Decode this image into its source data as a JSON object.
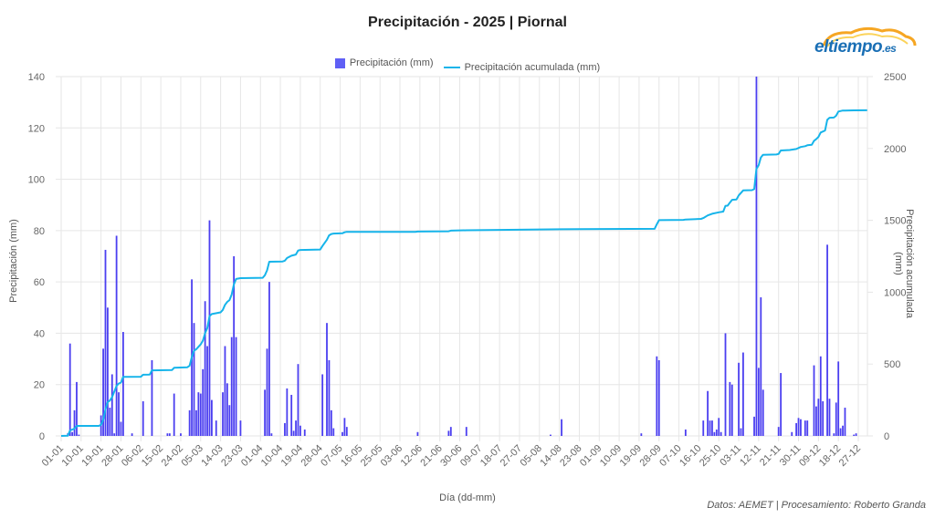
{
  "header": {
    "title": "Precipitación - 2025 | Piornal",
    "logo_text": "eltiempo",
    "logo_suffix": ".es"
  },
  "legend": {
    "bar_label": "Precipitación (mm)",
    "line_label": "Precipitación acumulada (mm)"
  },
  "footer": {
    "xlabel": "Día (dd-mm)",
    "credit": "Datos: AEMET | Procesamiento: Roberto Granda"
  },
  "colors": {
    "bar": "#4b3ff0",
    "line": "#16b4ea",
    "grid": "#e6e6e6"
  },
  "chart_data": {
    "type": "bar+line",
    "title": "Precipitación - 2025 | Piornal",
    "xlabel": "Día (dd-mm)",
    "ylabel": "Precipitación (mm)",
    "y2label": "Precipitación acumulada (mm)",
    "ylim": [
      0,
      140
    ],
    "y2lim": [
      0,
      2500
    ],
    "yticks": [
      0,
      20,
      40,
      60,
      80,
      100,
      120,
      140
    ],
    "y2ticks": [
      0,
      500,
      1000,
      1500,
      2000,
      2500
    ],
    "grid": true,
    "legend_position": "top",
    "x_tick_labels": [
      "01-01",
      "10-01",
      "19-01",
      "28-01",
      "06-02",
      "15-02",
      "24-02",
      "05-03",
      "14-03",
      "23-03",
      "01-04",
      "10-04",
      "19-04",
      "28-04",
      "07-05",
      "16-05",
      "25-05",
      "03-06",
      "12-06",
      "21-06",
      "30-06",
      "09-07",
      "18-07",
      "27-07",
      "05-08",
      "14-08",
      "23-08",
      "01-09",
      "10-09",
      "19-09",
      "28-09",
      "07-10",
      "16-10",
      "25-10",
      "03-11",
      "12-11",
      "21-11",
      "30-11",
      "09-12",
      "18-12",
      "27-12"
    ],
    "series": [
      {
        "name": "Precipitación (mm)",
        "type": "bar",
        "axis": "left",
        "points": [
          [
            3,
            1
          ],
          [
            4,
            36
          ],
          [
            5,
            1.5
          ],
          [
            6,
            10
          ],
          [
            7,
            21
          ],
          [
            8,
            0.5
          ],
          [
            18,
            8
          ],
          [
            19,
            34
          ],
          [
            20,
            72.5
          ],
          [
            21,
            50
          ],
          [
            22,
            11
          ],
          [
            23,
            24
          ],
          [
            24,
            1
          ],
          [
            25,
            78
          ],
          [
            26,
            17
          ],
          [
            27,
            5.5
          ],
          [
            28,
            40.5
          ],
          [
            32,
            1
          ],
          [
            37,
            13.5
          ],
          [
            41,
            29.5
          ],
          [
            48,
            1
          ],
          [
            49,
            1
          ],
          [
            51,
            16.5
          ],
          [
            54,
            1
          ],
          [
            58,
            10
          ],
          [
            59,
            61
          ],
          [
            60,
            44
          ],
          [
            61,
            10
          ],
          [
            62,
            17
          ],
          [
            63,
            16.5
          ],
          [
            64,
            26
          ],
          [
            65,
            52.5
          ],
          [
            66,
            35
          ],
          [
            67,
            84
          ],
          [
            68,
            14
          ],
          [
            70,
            6
          ],
          [
            73,
            17
          ],
          [
            74,
            35
          ],
          [
            75,
            20.5
          ],
          [
            76,
            12
          ],
          [
            77,
            38.5
          ],
          [
            78,
            70
          ],
          [
            79,
            38.5
          ],
          [
            81,
            6
          ],
          [
            92,
            18
          ],
          [
            93,
            34
          ],
          [
            94,
            60
          ],
          [
            95,
            1
          ],
          [
            101,
            5
          ],
          [
            102,
            18.5
          ],
          [
            104,
            16
          ],
          [
            105,
            2
          ],
          [
            106,
            6
          ],
          [
            107,
            28
          ],
          [
            108,
            4
          ],
          [
            110,
            2.5
          ],
          [
            118,
            24
          ],
          [
            120,
            44
          ],
          [
            121,
            29.5
          ],
          [
            122,
            10
          ],
          [
            123,
            3
          ],
          [
            127,
            1.5
          ],
          [
            128,
            7
          ],
          [
            129,
            3.5
          ],
          [
            161,
            1.5
          ],
          [
            175,
            2
          ],
          [
            176,
            3.5
          ],
          [
            183,
            3.5
          ],
          [
            221,
            0.5
          ],
          [
            226,
            6.5
          ],
          [
            262,
            1
          ],
          [
            269,
            31
          ],
          [
            270,
            29.5
          ],
          [
            282,
            2.5
          ],
          [
            290,
            6
          ],
          [
            292,
            17.5
          ],
          [
            293,
            6
          ],
          [
            294,
            6
          ],
          [
            295,
            1.5
          ],
          [
            296,
            2.5
          ],
          [
            297,
            7
          ],
          [
            298,
            1.5
          ],
          [
            300,
            40
          ],
          [
            302,
            21
          ],
          [
            303,
            20
          ],
          [
            306,
            28.5
          ],
          [
            307,
            3
          ],
          [
            308,
            32.5
          ],
          [
            313,
            7.5
          ],
          [
            314,
            140
          ],
          [
            315,
            26.5
          ],
          [
            316,
            54
          ],
          [
            317,
            18
          ],
          [
            324,
            3.5
          ],
          [
            325,
            24.5
          ],
          [
            330,
            1.5
          ],
          [
            332,
            5
          ],
          [
            333,
            7
          ],
          [
            334,
            6.5
          ],
          [
            336,
            6
          ],
          [
            337,
            6
          ],
          [
            340,
            27.5
          ],
          [
            341,
            11.5
          ],
          [
            342,
            14.5
          ],
          [
            343,
            31
          ],
          [
            344,
            13.5
          ],
          [
            346,
            74.5
          ],
          [
            347,
            14.5
          ],
          [
            349,
            1
          ],
          [
            350,
            13
          ],
          [
            351,
            29
          ],
          [
            352,
            3
          ],
          [
            353,
            4
          ],
          [
            354,
            11
          ],
          [
            358,
            0.5
          ],
          [
            359,
            1
          ]
        ]
      },
      {
        "name": "Precipitación acumulada (mm)",
        "type": "line",
        "axis": "right",
        "points": [
          [
            0,
            0
          ],
          [
            3,
            2
          ],
          [
            4,
            38
          ],
          [
            6,
            50
          ],
          [
            7,
            70
          ],
          [
            17,
            70
          ],
          [
            18,
            78
          ],
          [
            19,
            112
          ],
          [
            20,
            185
          ],
          [
            21,
            235
          ],
          [
            22,
            246
          ],
          [
            23,
            270
          ],
          [
            25,
            348
          ],
          [
            26,
            365
          ],
          [
            27,
            371
          ],
          [
            28,
            411
          ],
          [
            36,
            412
          ],
          [
            37,
            426
          ],
          [
            40,
            427
          ],
          [
            41,
            456
          ],
          [
            50,
            458
          ],
          [
            51,
            474
          ],
          [
            57,
            478
          ],
          [
            58,
            488
          ],
          [
            59,
            549
          ],
          [
            60,
            593
          ],
          [
            61,
            603
          ],
          [
            62,
            620
          ],
          [
            63,
            637
          ],
          [
            64,
            663
          ],
          [
            65,
            715
          ],
          [
            66,
            750
          ],
          [
            67,
            834
          ],
          [
            68,
            848
          ],
          [
            72,
            860
          ],
          [
            73,
            877
          ],
          [
            74,
            912
          ],
          [
            75,
            933
          ],
          [
            76,
            945
          ],
          [
            77,
            983
          ],
          [
            78,
            1053
          ],
          [
            79,
            1092
          ],
          [
            81,
            1098
          ],
          [
            91,
            1100
          ],
          [
            92,
            1118
          ],
          [
            93,
            1152
          ],
          [
            94,
            1212
          ],
          [
            100,
            1214
          ],
          [
            101,
            1219
          ],
          [
            102,
            1238
          ],
          [
            104,
            1254
          ],
          [
            106,
            1262
          ],
          [
            107,
            1290
          ],
          [
            108,
            1294
          ],
          [
            117,
            1297
          ],
          [
            118,
            1321
          ],
          [
            120,
            1365
          ],
          [
            121,
            1395
          ],
          [
            122,
            1405
          ],
          [
            123,
            1408
          ],
          [
            127,
            1410
          ],
          [
            128,
            1417
          ],
          [
            129,
            1420
          ],
          [
            160,
            1420
          ],
          [
            161,
            1422
          ],
          [
            175,
            1424
          ],
          [
            176,
            1428
          ],
          [
            183,
            1431
          ],
          [
            226,
            1438
          ],
          [
            268,
            1441
          ],
          [
            269,
            1472
          ],
          [
            270,
            1501
          ],
          [
            281,
            1503
          ],
          [
            282,
            1506
          ],
          [
            289,
            1510
          ],
          [
            290,
            1516
          ],
          [
            292,
            1534
          ],
          [
            294,
            1546
          ],
          [
            297,
            1556
          ],
          [
            299,
            1561
          ],
          [
            300,
            1601
          ],
          [
            301,
            1602
          ],
          [
            302,
            1623
          ],
          [
            303,
            1643
          ],
          [
            305,
            1645
          ],
          [
            306,
            1673
          ],
          [
            308,
            1708
          ],
          [
            312,
            1710
          ],
          [
            313,
            1717
          ],
          [
            314,
            1857
          ],
          [
            315,
            1884
          ],
          [
            316,
            1938
          ],
          [
            317,
            1956
          ],
          [
            323,
            1958
          ],
          [
            324,
            1962
          ],
          [
            325,
            1986
          ],
          [
            329,
            1989
          ],
          [
            332,
            1996
          ],
          [
            334,
            2010
          ],
          [
            336,
            2016
          ],
          [
            337,
            2022
          ],
          [
            339,
            2026
          ],
          [
            340,
            2053
          ],
          [
            341,
            2065
          ],
          [
            342,
            2080
          ],
          [
            343,
            2111
          ],
          [
            345,
            2125
          ],
          [
            346,
            2199
          ],
          [
            347,
            2214
          ],
          [
            349,
            2215
          ],
          [
            350,
            2228
          ],
          [
            351,
            2257
          ],
          [
            353,
            2264
          ],
          [
            354,
            2264
          ],
          [
            358,
            2265
          ],
          [
            364,
            2266
          ]
        ]
      }
    ]
  }
}
